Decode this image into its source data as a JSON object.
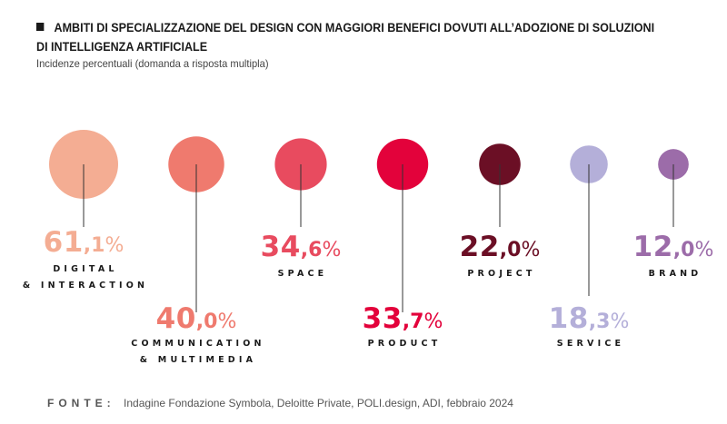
{
  "header": {
    "title": "AMBITI DI SPECIALIZZAZIONE DEL DESIGN CON MAGGIORI BENEFICI DOVUTI ALL’ADOZIONE DI SOLUZIONI DI INTELLIGENZA ARTIFICIALE",
    "subtitle": "Incidenze percentuali (domanda a risposta multipla)"
  },
  "chart_data": {
    "type": "bubble",
    "unit": "%",
    "categories": [
      [
        "DIGITAL",
        "& INTERACTION"
      ],
      [
        "COMMUNICATION",
        "& MULTIMEDIA"
      ],
      [
        "SPACE"
      ],
      [
        "PRODUCT"
      ],
      [
        "PROJECT"
      ],
      [
        "SERVICE"
      ],
      [
        "BRAND"
      ]
    ],
    "values": [
      61.1,
      40.0,
      34.6,
      33.7,
      22.0,
      18.3,
      12.0
    ],
    "colors": [
      "#f4ad93",
      "#ef7a6e",
      "#e84b5f",
      "#e3023b",
      "#6b0f25",
      "#b4afd9",
      "#9c6ca9"
    ]
  },
  "footer": {
    "source_key": "FONTE:",
    "source_text": "Indagine Fondazione Symbola, Deloitte Private, POLI.design, ADI, febbraio 2024"
  }
}
